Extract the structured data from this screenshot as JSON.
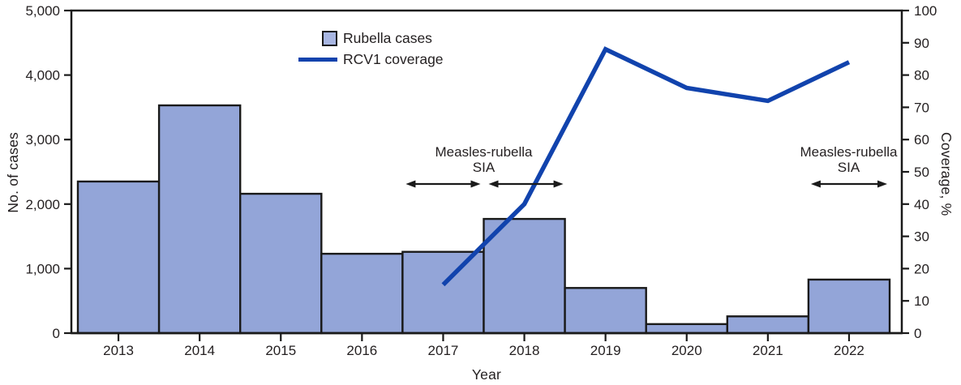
{
  "figure_title": "",
  "colors": {
    "background": "#ffffff",
    "bar_fill": "#93A5D8",
    "bar_stroke": "#1a1a1a",
    "line": "#1143AD",
    "legend_swatch_fill": "#A8B6E2",
    "axis": "#1a1a1a",
    "text": "#231f20",
    "arrow": "#1a1a1a"
  },
  "legend": {
    "items": [
      {
        "label": "Rubella cases",
        "swatch": "bar-square"
      },
      {
        "label": "RCV1 coverage",
        "swatch": "line"
      }
    ]
  },
  "annotations": [
    {
      "line1": "Measles-rubella",
      "line2": "SIA",
      "center_year": 2017.5,
      "arrows": [
        {
          "from": 2016.54,
          "to": 2017.46
        },
        {
          "from": 2017.56,
          "to": 2018.48
        }
      ]
    },
    {
      "line1": "Measles-rubella",
      "line2": "SIA",
      "center_year": 2022,
      "arrows": [
        {
          "from": 2021.53,
          "to": 2022.47
        }
      ]
    }
  ],
  "chart_data": {
    "type": "combo",
    "title": "",
    "categories": [
      "2013",
      "2014",
      "2015",
      "2016",
      "2017",
      "2018",
      "2019",
      "2020",
      "2021",
      "2022"
    ],
    "series": [
      {
        "name": "Rubella cases",
        "type": "bar",
        "yaxis": "left",
        "values": [
          2350,
          3530,
          2160,
          1230,
          1260,
          1770,
          700,
          140,
          260,
          830
        ]
      },
      {
        "name": "RCV1 coverage",
        "type": "line",
        "yaxis": "right",
        "x": [
          "2017",
          "2018",
          "2019",
          "2020",
          "2021",
          "2022"
        ],
        "values": [
          15,
          40,
          88,
          76,
          72,
          84
        ]
      }
    ],
    "xlabel": "Year",
    "ylabel_left": "No. of cases",
    "ylabel_right": "Coverage, %",
    "ylim_left": [
      0,
      5000
    ],
    "ylim_right": [
      0,
      100
    ],
    "yticks_left": [
      "0",
      "1,000",
      "2,000",
      "3,000",
      "4,000",
      "5,000"
    ],
    "yticks_right": [
      "0",
      "10",
      "20",
      "30",
      "40",
      "50",
      "60",
      "70",
      "80",
      "90",
      "100"
    ],
    "grid": false,
    "legend_position": "top-inside-left-of-center"
  }
}
